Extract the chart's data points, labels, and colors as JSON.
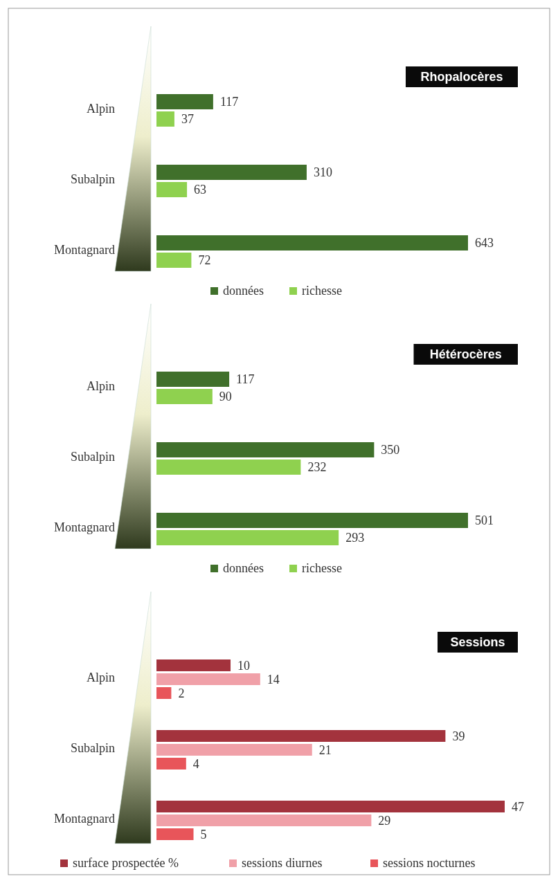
{
  "chart_data": [
    {
      "type": "bar",
      "orientation": "horizontal",
      "title": "Rhopalocères",
      "categories": [
        "Alpin",
        "Subalpin",
        "Montagnard"
      ],
      "series": [
        {
          "name": "données",
          "color": "#40702b",
          "values": [
            117,
            310,
            643
          ]
        },
        {
          "name": "richesse",
          "color": "#8fd14f",
          "values": [
            37,
            63,
            72
          ]
        }
      ],
      "data_labels": true,
      "legend": "bottom"
    },
    {
      "type": "bar",
      "orientation": "horizontal",
      "title": "Hétérocères",
      "categories": [
        "Alpin",
        "Subalpin",
        "Montagnard"
      ],
      "series": [
        {
          "name": "données",
          "color": "#40702b",
          "values": [
            117,
            350,
            501
          ]
        },
        {
          "name": "richesse",
          "color": "#8fd14f",
          "values": [
            90,
            232,
            293
          ]
        }
      ],
      "data_labels": true,
      "legend": "bottom"
    },
    {
      "type": "bar",
      "orientation": "horizontal",
      "title": "Sessions",
      "categories": [
        "Alpin",
        "Subalpin",
        "Montagnard"
      ],
      "series": [
        {
          "name": "surface prospectée %",
          "color": "#a3333d",
          "values": [
            10,
            39,
            47
          ]
        },
        {
          "name": "sessions diurnes",
          "color": "#f0a0a8",
          "values": [
            14,
            21,
            29
          ]
        },
        {
          "name": "sessions nocturnes",
          "color": "#e8555a",
          "values": [
            2,
            4,
            5
          ]
        }
      ],
      "data_labels": true,
      "legend": "bottom"
    }
  ]
}
